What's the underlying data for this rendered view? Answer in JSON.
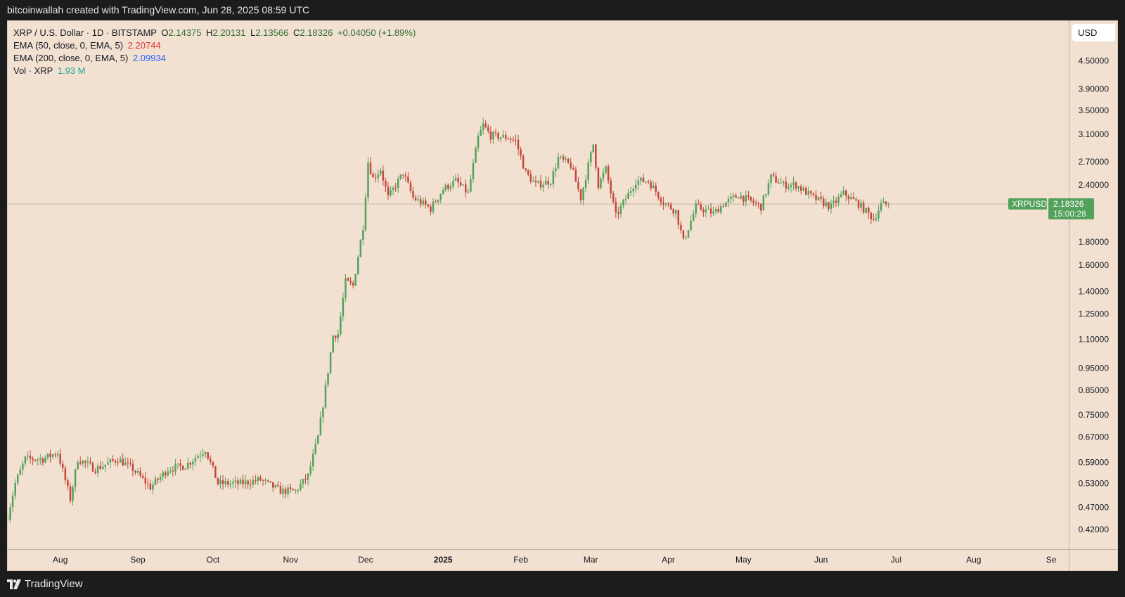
{
  "header": {
    "attribution": "bitcoinwallah created with TradingView.com, Jun 28, 2025 08:59 UTC"
  },
  "legend": {
    "title": "XRP / U.S. Dollar · 1D · BITSTAMP",
    "ohlc": {
      "o_label": "O",
      "o": "2.14375",
      "h_label": "H",
      "h": "2.20131",
      "l_label": "L",
      "l": "2.13566",
      "c_label": "C",
      "c": "2.18326",
      "change": "+0.04050 (+1.89%)"
    },
    "ema50_label": "EMA (50, close, 0, EMA, 5)",
    "ema50_value": "2.20744",
    "ema200_label": "EMA (200, close, 0, EMA, 5)",
    "ema200_value": "2.09934",
    "vol_label": "Vol · XRP",
    "vol_value": "1.93 M"
  },
  "currency_button": "USD",
  "price_tag": {
    "symbol": "XRPUSD",
    "price": "2.18326",
    "countdown": "15:00:28"
  },
  "footer": {
    "brand": "TradingView"
  },
  "colors": {
    "up": "#53a15c",
    "down": "#c4473a",
    "background": "#f2e1d1",
    "ema50": "#e0323a",
    "ema200": "#2962ff",
    "vol": "#26a69a"
  },
  "chart_data": {
    "type": "candlestick",
    "y_scale": "log",
    "ylim": [
      0.38,
      5.5
    ],
    "y_ticks": [
      "4.50000",
      "3.90000",
      "3.50000",
      "3.10000",
      "2.70000",
      "2.40000",
      "1.80000",
      "1.60000",
      "1.40000",
      "1.25000",
      "1.10000",
      "0.95000",
      "0.85000",
      "0.75000",
      "0.67000",
      "0.59000",
      "0.53000",
      "0.47000",
      "0.42000"
    ],
    "x_ticks": [
      {
        "date": "2024-08-01",
        "label": "Aug",
        "bold": false
      },
      {
        "date": "2024-09-01",
        "label": "Sep",
        "bold": false
      },
      {
        "date": "2024-10-01",
        "label": "Oct",
        "bold": false
      },
      {
        "date": "2024-11-01",
        "label": "Nov",
        "bold": false
      },
      {
        "date": "2024-12-01",
        "label": "Dec",
        "bold": false
      },
      {
        "date": "2025-01-01",
        "label": "2025",
        "bold": true
      },
      {
        "date": "2025-02-01",
        "label": "Feb",
        "bold": false
      },
      {
        "date": "2025-03-01",
        "label": "Mar",
        "bold": false
      },
      {
        "date": "2025-04-01",
        "label": "Apr",
        "bold": false
      },
      {
        "date": "2025-05-01",
        "label": "May",
        "bold": false
      },
      {
        "date": "2025-06-01",
        "label": "Jun",
        "bold": false
      },
      {
        "date": "2025-07-01",
        "label": "Jul",
        "bold": false
      },
      {
        "date": "2025-08-01",
        "label": "Aug",
        "bold": false
      },
      {
        "date": "2025-09-01",
        "label": "Se",
        "bold": false
      }
    ],
    "x_range": [
      "2024-07-11",
      "2025-09-08"
    ],
    "key_closes": [
      {
        "date": "2024-07-11",
        "close": 0.45
      },
      {
        "date": "2024-07-14",
        "close": 0.53
      },
      {
        "date": "2024-07-18",
        "close": 0.6
      },
      {
        "date": "2024-07-25",
        "close": 0.6
      },
      {
        "date": "2024-07-31",
        "close": 0.62
      },
      {
        "date": "2024-08-05",
        "close": 0.49
      },
      {
        "date": "2024-08-08",
        "close": 0.6
      },
      {
        "date": "2024-08-15",
        "close": 0.57
      },
      {
        "date": "2024-08-24",
        "close": 0.6
      },
      {
        "date": "2024-08-30",
        "close": 0.57
      },
      {
        "date": "2024-09-06",
        "close": 0.52
      },
      {
        "date": "2024-09-13",
        "close": 0.57
      },
      {
        "date": "2024-09-20",
        "close": 0.58
      },
      {
        "date": "2024-09-28",
        "close": 0.63
      },
      {
        "date": "2024-10-03",
        "close": 0.53
      },
      {
        "date": "2024-10-12",
        "close": 0.53
      },
      {
        "date": "2024-10-20",
        "close": 0.54
      },
      {
        "date": "2024-10-28",
        "close": 0.51
      },
      {
        "date": "2024-11-03",
        "close": 0.51
      },
      {
        "date": "2024-11-08",
        "close": 0.55
      },
      {
        "date": "2024-11-12",
        "close": 0.67
      },
      {
        "date": "2024-11-15",
        "close": 0.86
      },
      {
        "date": "2024-11-18",
        "close": 1.12
      },
      {
        "date": "2024-11-20",
        "close": 1.13
      },
      {
        "date": "2024-11-23",
        "close": 1.47
      },
      {
        "date": "2024-11-26",
        "close": 1.44
      },
      {
        "date": "2024-11-30",
        "close": 1.95
      },
      {
        "date": "2024-12-02",
        "close": 2.7
      },
      {
        "date": "2024-12-04",
        "close": 2.48
      },
      {
        "date": "2024-12-07",
        "close": 2.6
      },
      {
        "date": "2024-12-10",
        "close": 2.25
      },
      {
        "date": "2024-12-16",
        "close": 2.55
      },
      {
        "date": "2024-12-20",
        "close": 2.25
      },
      {
        "date": "2024-12-27",
        "close": 2.13
      },
      {
        "date": "2025-01-01",
        "close": 2.35
      },
      {
        "date": "2025-01-06",
        "close": 2.45
      },
      {
        "date": "2025-01-11",
        "close": 2.3
      },
      {
        "date": "2025-01-15",
        "close": 3.05
      },
      {
        "date": "2025-01-17",
        "close": 3.25
      },
      {
        "date": "2025-01-20",
        "close": 3.08
      },
      {
        "date": "2025-01-27",
        "close": 3.05
      },
      {
        "date": "2025-01-30",
        "close": 3.0
      },
      {
        "date": "2025-02-03",
        "close": 2.55
      },
      {
        "date": "2025-02-07",
        "close": 2.4
      },
      {
        "date": "2025-02-13",
        "close": 2.45
      },
      {
        "date": "2025-02-16",
        "close": 2.75
      },
      {
        "date": "2025-02-21",
        "close": 2.65
      },
      {
        "date": "2025-02-25",
        "close": 2.25
      },
      {
        "date": "2025-03-02",
        "close": 2.95
      },
      {
        "date": "2025-03-04",
        "close": 2.4
      },
      {
        "date": "2025-03-07",
        "close": 2.6
      },
      {
        "date": "2025-03-11",
        "close": 2.05
      },
      {
        "date": "2025-03-19",
        "close": 2.45
      },
      {
        "date": "2025-03-24",
        "close": 2.45
      },
      {
        "date": "2025-03-30",
        "close": 2.2
      },
      {
        "date": "2025-04-04",
        "close": 2.1
      },
      {
        "date": "2025-04-07",
        "close": 1.8
      },
      {
        "date": "2025-04-12",
        "close": 2.15
      },
      {
        "date": "2025-04-19",
        "close": 2.08
      },
      {
        "date": "2025-04-23",
        "close": 2.18
      },
      {
        "date": "2025-04-29",
        "close": 2.28
      },
      {
        "date": "2025-05-08",
        "close": 2.15
      },
      {
        "date": "2025-05-12",
        "close": 2.5
      },
      {
        "date": "2025-05-17",
        "close": 2.4
      },
      {
        "date": "2025-05-22",
        "close": 2.4
      },
      {
        "date": "2025-05-29",
        "close": 2.25
      },
      {
        "date": "2025-06-05",
        "close": 2.15
      },
      {
        "date": "2025-06-10",
        "close": 2.3
      },
      {
        "date": "2025-06-16",
        "close": 2.18
      },
      {
        "date": "2025-06-22",
        "close": 2.02
      },
      {
        "date": "2025-06-25",
        "close": 2.17
      },
      {
        "date": "2025-06-28",
        "close": 2.18
      }
    ]
  }
}
